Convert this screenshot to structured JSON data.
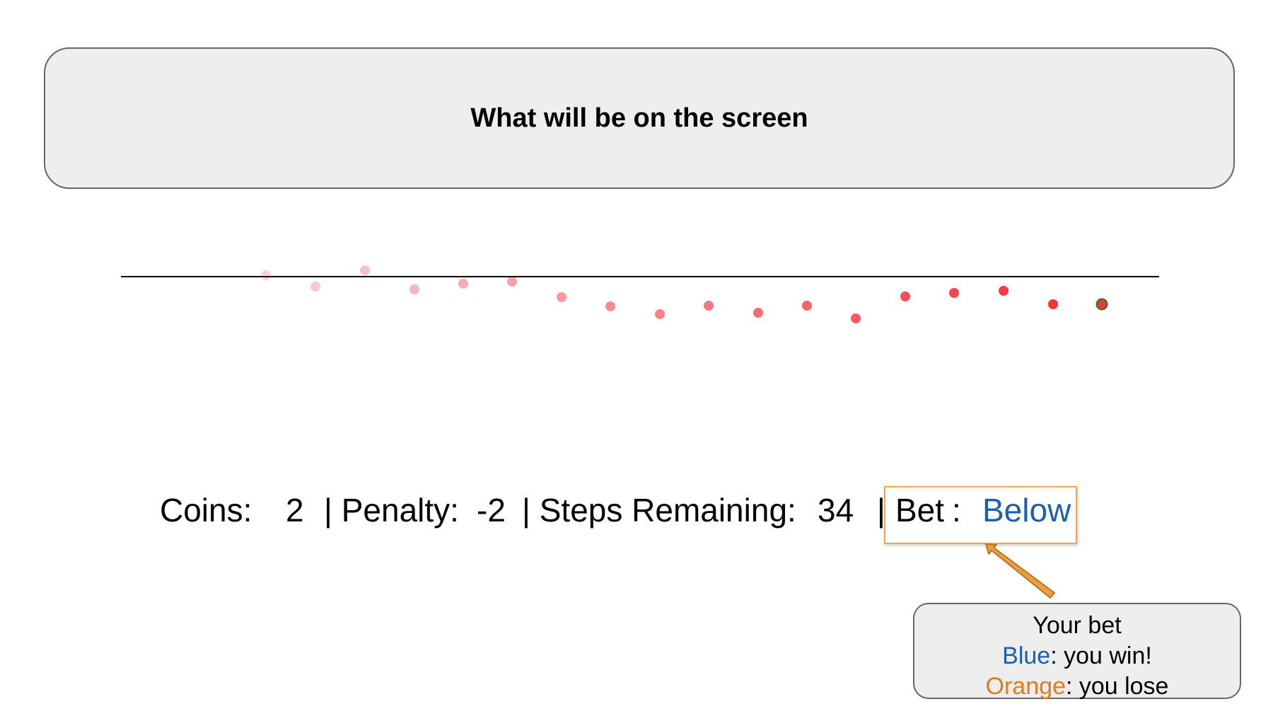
{
  "header": {
    "title": "What will be on the screen"
  },
  "plot": {
    "dot_color": "#f0282d",
    "current_dot_fill": "#e63a3a",
    "current_dot_outline": "#2f7a1e",
    "line_color": "#000000"
  },
  "status": {
    "coins_label": "Coins:",
    "coins_value": "2",
    "penalty_label": "| Penalty:",
    "penalty_value": "-2",
    "steps_label": "| Steps Remaining:",
    "steps_value": "34",
    "bet_sep": "|",
    "bet_label": "Bet",
    "bet_colon": ":",
    "bet_value": "Below"
  },
  "callout": {
    "line1": "Your bet",
    "blue_word": "Blue",
    "blue_rest": ": you win!",
    "orange_word": "Orange",
    "orange_rest": ": you lose",
    "arrow_color": "#e9a045"
  }
}
